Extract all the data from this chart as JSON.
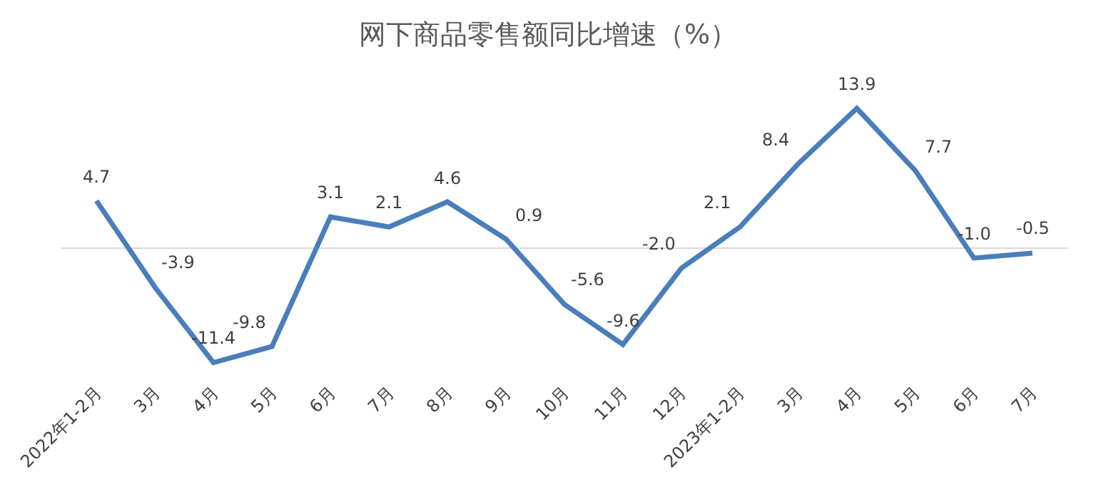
{
  "chart_data": {
    "type": "line",
    "title": "网下商品零售额同比增速（%）",
    "categories": [
      "2022年1-2月",
      "3月",
      "4月",
      "5月",
      "6月",
      "7月",
      "8月",
      "9月",
      "10月",
      "11月",
      "12月",
      "2023年1-2月",
      "3月",
      "4月",
      "5月",
      "6月",
      "7月"
    ],
    "series": [
      {
        "color": "#4a7ebb",
        "values": [
          4.7,
          -3.9,
          -11.4,
          -9.8,
          3.1,
          2.1,
          4.6,
          0.9,
          -5.6,
          -9.6,
          -2.0,
          2.1,
          8.4,
          13.9,
          7.7,
          -1.0,
          -0.5
        ],
        "value_labels": [
          "4.7",
          "-3.9",
          "-11.4",
          "-9.8",
          "3.1",
          "2.1",
          "4.6",
          "0.9",
          "-5.6",
          "-9.6",
          "-2.0",
          "2.1",
          "8.4",
          "13.9",
          "7.7",
          "-1.0",
          "-0.5"
        ]
      }
    ],
    "marker": "none",
    "line_style": "solid",
    "tick_labels": "x"
  }
}
